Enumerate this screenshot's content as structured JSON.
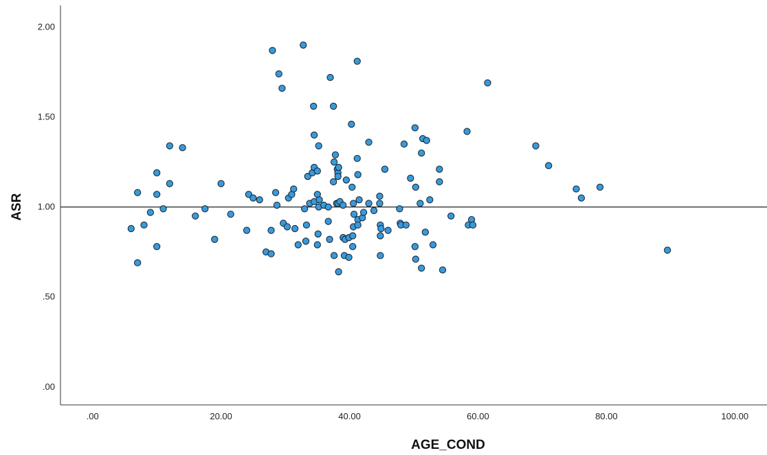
{
  "chart_data": {
    "type": "scatter",
    "title": "",
    "xlabel": "AGE_COND",
    "ylabel": "ASR",
    "xlim": [
      -5,
      105
    ],
    "ylim": [
      -0.1,
      2.12
    ],
    "x_ticks": [
      0,
      20,
      40,
      60,
      80,
      100
    ],
    "x_tick_labels": [
      ".00",
      "20.00",
      "40.00",
      "60.00",
      "80.00",
      "100.00"
    ],
    "y_ticks": [
      0,
      0.5,
      1.0,
      1.5,
      2.0
    ],
    "y_tick_labels": [
      ".00",
      ".50",
      "1.00",
      "1.50",
      "2.00"
    ],
    "reference_line_y": 1.0,
    "grid": false,
    "legend": "none",
    "colors": {
      "marker_fill": "#3a9ad9",
      "marker_stroke": "#1a2a3a",
      "axis": "#333333",
      "reference_line": "#222222"
    },
    "points": [
      [
        6,
        0.88
      ],
      [
        7,
        1.08
      ],
      [
        7,
        0.69
      ],
      [
        8,
        0.9
      ],
      [
        9,
        0.97
      ],
      [
        10,
        1.19
      ],
      [
        10,
        1.07
      ],
      [
        10,
        0.78
      ],
      [
        11,
        0.99
      ],
      [
        12,
        1.34
      ],
      [
        12,
        1.13
      ],
      [
        14,
        1.33
      ],
      [
        16,
        0.95
      ],
      [
        17.5,
        0.99
      ],
      [
        19,
        0.82
      ],
      [
        20,
        1.13
      ],
      [
        21.5,
        0.96
      ],
      [
        24,
        0.87
      ],
      [
        24.3,
        1.07
      ],
      [
        25,
        1.05
      ],
      [
        26,
        1.04
      ],
      [
        27,
        0.75
      ],
      [
        27.8,
        0.74
      ],
      [
        27.8,
        0.87
      ],
      [
        28,
        1.87
      ],
      [
        28.5,
        1.08
      ],
      [
        28.7,
        1.01
      ],
      [
        29,
        1.74
      ],
      [
        29.5,
        1.66
      ],
      [
        29.7,
        0.91
      ],
      [
        30.3,
        0.89
      ],
      [
        30.5,
        1.05
      ],
      [
        31,
        1.07
      ],
      [
        31.3,
        1.1
      ],
      [
        31.5,
        0.88
      ],
      [
        32,
        0.79
      ],
      [
        32.8,
        1.9
      ],
      [
        33,
        0.99
      ],
      [
        33.2,
        0.81
      ],
      [
        33.3,
        0.9
      ],
      [
        33.5,
        1.17
      ],
      [
        33.8,
        1.02
      ],
      [
        34.2,
        1.19
      ],
      [
        34.4,
        1.56
      ],
      [
        34.5,
        1.22
      ],
      [
        34.5,
        1.4
      ],
      [
        34.5,
        1.03
      ],
      [
        35,
        1.2
      ],
      [
        35,
        1.07
      ],
      [
        35,
        0.79
      ],
      [
        35.1,
        0.85
      ],
      [
        35.2,
        1.34
      ],
      [
        35.2,
        1.0
      ],
      [
        35.3,
        1.04
      ],
      [
        36,
        1.01
      ],
      [
        36.7,
        1.0
      ],
      [
        36.7,
        0.92
      ],
      [
        36.9,
        0.82
      ],
      [
        37,
        1.72
      ],
      [
        37.5,
        1.56
      ],
      [
        37.5,
        1.14
      ],
      [
        37.6,
        1.25
      ],
      [
        37.6,
        0.73
      ],
      [
        37.8,
        1.29
      ],
      [
        38,
        1.02
      ],
      [
        38.1,
        1.21
      ],
      [
        38.2,
        1.19
      ],
      [
        38.2,
        1.17
      ],
      [
        38.2,
        1.02
      ],
      [
        38.3,
        1.22
      ],
      [
        38.3,
        0.64
      ],
      [
        38.5,
        1.03
      ],
      [
        39,
        0.83
      ],
      [
        39,
        1.01
      ],
      [
        39.2,
        0.73
      ],
      [
        39.3,
        0.82
      ],
      [
        39.5,
        1.15
      ],
      [
        39.9,
        0.83
      ],
      [
        39.9,
        0.72
      ],
      [
        40.3,
        1.46
      ],
      [
        40.4,
        1.11
      ],
      [
        40.5,
        0.78
      ],
      [
        40.5,
        0.84
      ],
      [
        40.6,
        0.89
      ],
      [
        40.6,
        1.02
      ],
      [
        40.7,
        0.96
      ],
      [
        41.2,
        1.81
      ],
      [
        41.2,
        1.27
      ],
      [
        41.3,
        1.18
      ],
      [
        41.3,
        0.93
      ],
      [
        41.3,
        0.9
      ],
      [
        41.5,
        1.04
      ],
      [
        42,
        0.94
      ],
      [
        42.2,
        0.97
      ],
      [
        43,
        1.36
      ],
      [
        43,
        1.02
      ],
      [
        43.8,
        0.98
      ],
      [
        44.7,
        1.06
      ],
      [
        44.7,
        1.02
      ],
      [
        44.8,
        0.84
      ],
      [
        44.8,
        0.9
      ],
      [
        44.8,
        0.73
      ],
      [
        44.9,
        0.88
      ],
      [
        45.5,
        1.21
      ],
      [
        46,
        0.87
      ],
      [
        47.8,
        0.99
      ],
      [
        47.9,
        0.91
      ],
      [
        48,
        0.9
      ],
      [
        48.5,
        1.35
      ],
      [
        48.8,
        0.9
      ],
      [
        49.5,
        1.16
      ],
      [
        50.2,
        1.44
      ],
      [
        50.2,
        0.78
      ],
      [
        50.3,
        1.11
      ],
      [
        50.3,
        0.71
      ],
      [
        51,
        1.02
      ],
      [
        51.2,
        1.3
      ],
      [
        51.2,
        0.66
      ],
      [
        51.4,
        1.38
      ],
      [
        51.8,
        0.86
      ],
      [
        52,
        1.37
      ],
      [
        52.5,
        1.04
      ],
      [
        53,
        0.79
      ],
      [
        54,
        1.21
      ],
      [
        54,
        1.14
      ],
      [
        54.5,
        0.65
      ],
      [
        55.8,
        0.95
      ],
      [
        58.3,
        1.42
      ],
      [
        58.5,
        0.9
      ],
      [
        59,
        0.93
      ],
      [
        59.2,
        0.9
      ],
      [
        61.5,
        1.69
      ],
      [
        69,
        1.34
      ],
      [
        71,
        1.23
      ],
      [
        75.3,
        1.1
      ],
      [
        76.1,
        1.05
      ],
      [
        79,
        1.11
      ],
      [
        89.5,
        0.76
      ]
    ]
  }
}
